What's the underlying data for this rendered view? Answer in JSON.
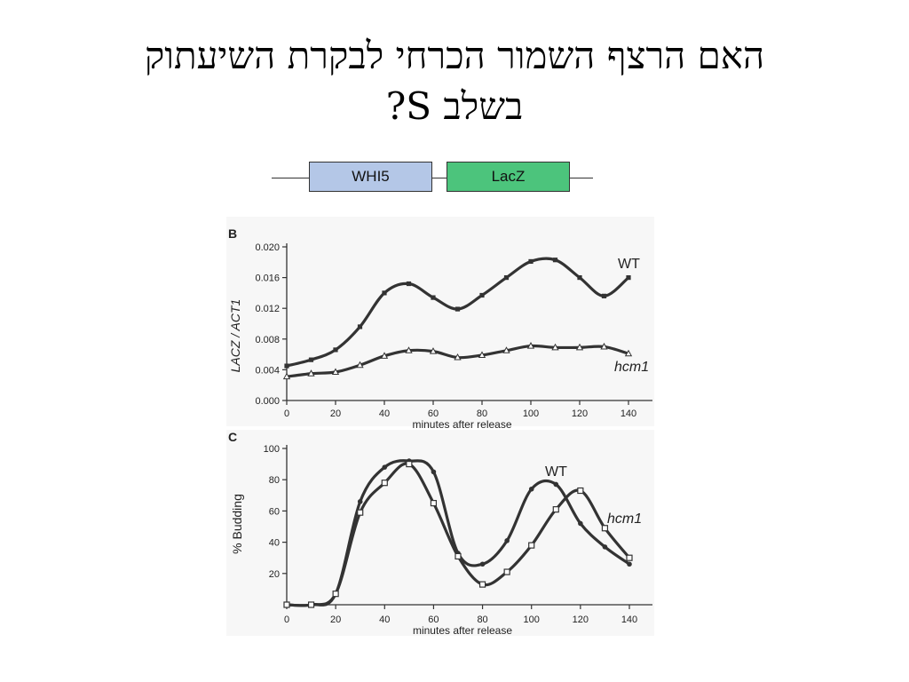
{
  "slide": {
    "title_line1": "האם הרצף השמור הכרחי לבקרת השיעתוק",
    "title_line2": "בשלב S?"
  },
  "construct": {
    "genes": [
      {
        "label": "WHI5",
        "color": "#b4c7e7"
      },
      {
        "label": "LacZ",
        "color": "#4cc47c"
      }
    ]
  },
  "chart_data": [
    {
      "type": "line",
      "panel": "B",
      "xlabel": "minutes after release",
      "ylabel": "LACZ / ACT1",
      "xlim": [
        0,
        145
      ],
      "ylim": [
        0,
        0.02
      ],
      "x_ticks": [
        0,
        20,
        40,
        60,
        80,
        100,
        120,
        140
      ],
      "y_ticks": [
        0.0,
        0.004,
        0.008,
        0.012,
        0.016,
        0.02
      ],
      "y_tick_labels": [
        "0.000",
        "0.004",
        "0.008",
        "0.012",
        "0.016",
        "0.020"
      ],
      "series": [
        {
          "name": "WT",
          "marker": "filled-square",
          "x": [
            0,
            10,
            20,
            30,
            40,
            50,
            60,
            70,
            80,
            90,
            100,
            110,
            120,
            130,
            140
          ],
          "y": [
            0.0045,
            0.0053,
            0.0066,
            0.0096,
            0.014,
            0.0152,
            0.0134,
            0.0119,
            0.0137,
            0.016,
            0.0181,
            0.0183,
            0.016,
            0.0136,
            0.016
          ]
        },
        {
          "name": "hcm1",
          "marker": "open-triangle",
          "x": [
            0,
            10,
            20,
            30,
            40,
            50,
            60,
            70,
            80,
            90,
            100,
            110,
            120,
            130,
            140
          ],
          "y": [
            0.0031,
            0.0035,
            0.0037,
            0.0046,
            0.0058,
            0.0065,
            0.0064,
            0.0056,
            0.0059,
            0.0065,
            0.0071,
            0.0069,
            0.0069,
            0.007,
            0.0061
          ]
        }
      ]
    },
    {
      "type": "line",
      "panel": "C",
      "xlabel": "minutes after release",
      "ylabel": "% Budding",
      "xlim": [
        0,
        145
      ],
      "ylim": [
        0,
        100
      ],
      "x_ticks": [
        0,
        20,
        40,
        60,
        80,
        100,
        120,
        140
      ],
      "y_ticks": [
        20,
        40,
        60,
        80,
        100
      ],
      "y_tick_labels": [
        "20",
        "40",
        "60",
        "80",
        "100"
      ],
      "series": [
        {
          "name": "WT",
          "marker": "filled-circle",
          "x": [
            0,
            10,
            20,
            30,
            40,
            50,
            60,
            70,
            80,
            90,
            100,
            110,
            120,
            130,
            140
          ],
          "y": [
            0,
            0,
            7,
            66,
            88,
            92,
            85,
            33,
            26,
            41,
            74,
            77,
            52,
            37,
            26
          ]
        },
        {
          "name": "hcm1",
          "marker": "open-square",
          "x": [
            0,
            10,
            20,
            30,
            40,
            50,
            60,
            70,
            80,
            90,
            100,
            110,
            120,
            130,
            140
          ],
          "y": [
            0,
            0,
            7,
            59,
            78,
            90,
            65,
            31,
            13,
            21,
            38,
            61,
            73,
            49,
            30
          ]
        }
      ]
    }
  ]
}
